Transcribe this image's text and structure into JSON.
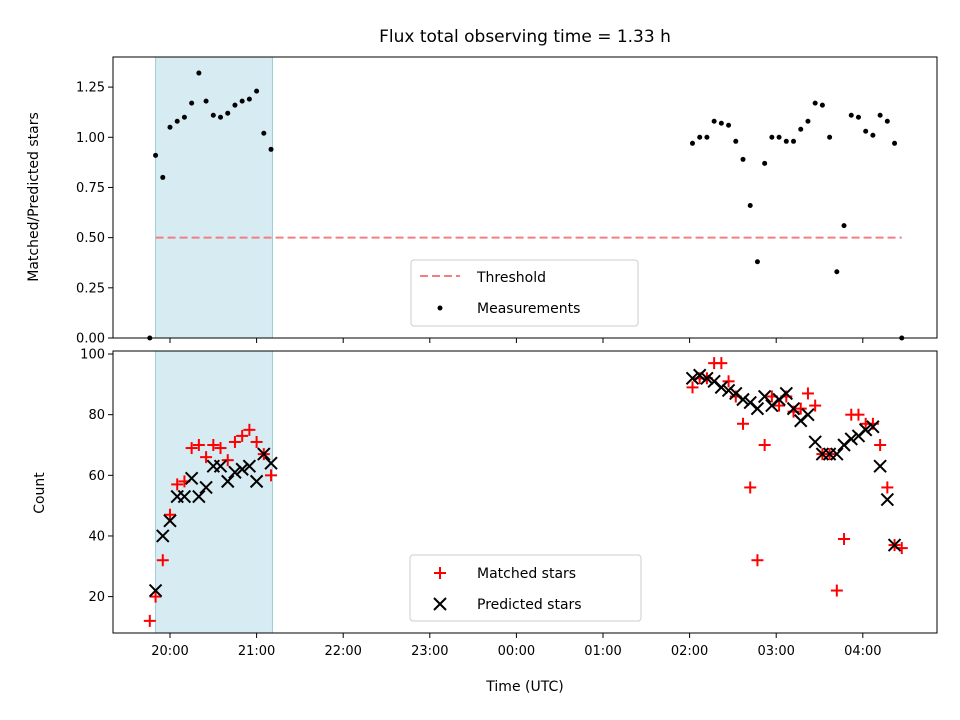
{
  "chart_data": {
    "title": "Flux total observing time = 1.33 h",
    "shaded_interval": [
      "19:50",
      "21:11"
    ],
    "xlabel": "Time (UTC)",
    "x_ticks": [
      "20:00",
      "21:00",
      "22:00",
      "23:00",
      "00:00",
      "01:00",
      "02:00",
      "03:00",
      "04:00"
    ],
    "panels": [
      {
        "type": "scatter",
        "ylabel": "Matched/Predicted stars",
        "ylim": [
          0,
          1.4
        ],
        "y_ticks": [
          "0.00",
          "0.25",
          "0.50",
          "0.75",
          "1.00",
          "1.25"
        ],
        "threshold": {
          "name": "Threshold",
          "value": 0.5,
          "x_range": [
            "19:50",
            "04:27"
          ],
          "color": "#f08080"
        },
        "series": [
          {
            "name": "Measurements",
            "color": "#000000",
            "x": [
              "19:46",
              "19:50",
              "19:55",
              "20:00",
              "20:05",
              "20:10",
              "20:15",
              "20:20",
              "20:25",
              "20:30",
              "20:35",
              "20:40",
              "20:45",
              "20:50",
              "20:55",
              "21:00",
              "21:05",
              "21:10",
              "02:02",
              "02:07",
              "02:12",
              "02:17",
              "02:22",
              "02:27",
              "02:32",
              "02:37",
              "02:42",
              "02:47",
              "02:52",
              "02:57",
              "03:02",
              "03:07",
              "03:12",
              "03:17",
              "03:22",
              "03:27",
              "03:32",
              "03:37",
              "03:42",
              "03:47",
              "03:52",
              "03:57",
              "04:02",
              "04:07",
              "04:12",
              "04:17",
              "04:22",
              "04:27"
            ],
            "y": [
              0.0,
              0.91,
              0.8,
              1.05,
              1.08,
              1.1,
              1.17,
              1.32,
              1.18,
              1.11,
              1.1,
              1.12,
              1.16,
              1.18,
              1.19,
              1.23,
              1.02,
              0.94,
              0.97,
              1.0,
              1.0,
              1.08,
              1.07,
              1.06,
              0.98,
              0.89,
              0.66,
              0.38,
              0.87,
              1.0,
              1.0,
              0.98,
              0.98,
              1.04,
              1.08,
              1.17,
              1.16,
              1.0,
              0.33,
              0.56,
              1.11,
              1.1,
              1.03,
              1.01,
              1.11,
              1.08,
              0.97,
              0.0
            ]
          }
        ],
        "legend": "lower center"
      },
      {
        "type": "scatter",
        "ylabel": "Count",
        "ylim": [
          8,
          101
        ],
        "y_ticks": [
          "20",
          "40",
          "60",
          "80",
          "100"
        ],
        "series": [
          {
            "name": "Matched stars",
            "marker": "+",
            "color": "#ff0000",
            "x": [
              "19:46",
              "19:50",
              "19:55",
              "20:00",
              "20:05",
              "20:10",
              "20:15",
              "20:20",
              "20:25",
              "20:30",
              "20:35",
              "20:40",
              "20:45",
              "20:50",
              "20:55",
              "21:00",
              "21:05",
              "21:10",
              "02:02",
              "02:07",
              "02:12",
              "02:17",
              "02:22",
              "02:27",
              "02:32",
              "02:37",
              "02:42",
              "02:47",
              "02:52",
              "02:57",
              "03:02",
              "03:07",
              "03:12",
              "03:17",
              "03:22",
              "03:27",
              "03:32",
              "03:37",
              "03:42",
              "03:47",
              "03:52",
              "03:57",
              "04:02",
              "04:07",
              "04:12",
              "04:17",
              "04:22",
              "04:27"
            ],
            "y": [
              12,
              20,
              32,
              47,
              57,
              58,
              69,
              70,
              66,
              70,
              69,
              65,
              71,
              73,
              75,
              71,
              67,
              60,
              89,
              92,
              92,
              97,
              97,
              91,
              86,
              77,
              56,
              32,
              70,
              86,
              83,
              86,
              81,
              82,
              87,
              83,
              67,
              67,
              22,
              39,
              80,
              80,
              77,
              77,
              70,
              56,
              37,
              36
            ]
          },
          {
            "name": "Predicted stars",
            "marker": "x",
            "color": "#000000",
            "x": [
              "19:50",
              "19:55",
              "20:00",
              "20:05",
              "20:10",
              "20:15",
              "20:20",
              "20:25",
              "20:30",
              "20:35",
              "20:40",
              "20:45",
              "20:50",
              "20:55",
              "21:00",
              "21:05",
              "21:10",
              "02:02",
              "02:07",
              "02:12",
              "02:17",
              "02:22",
              "02:27",
              "02:32",
              "02:37",
              "02:42",
              "02:47",
              "02:52",
              "02:57",
              "03:02",
              "03:07",
              "03:12",
              "03:17",
              "03:22",
              "03:27",
              "03:32",
              "03:37",
              "03:42",
              "03:47",
              "03:52",
              "03:57",
              "04:02",
              "04:07",
              "04:12",
              "04:17",
              "04:22"
            ],
            "y": [
              22,
              40,
              45,
              53,
              53,
              59,
              53,
              56,
              63,
              63,
              58,
              61,
              62,
              63,
              58,
              67,
              64,
              92,
              93,
              92,
              91,
              89,
              88,
              87,
              85,
              84,
              82,
              86,
              83,
              85,
              87,
              82,
              78,
              80,
              71,
              67,
              67,
              67,
              70,
              72,
              73,
              75,
              76,
              63,
              52,
              37
            ]
          }
        ],
        "legend": "lower center"
      }
    ]
  }
}
